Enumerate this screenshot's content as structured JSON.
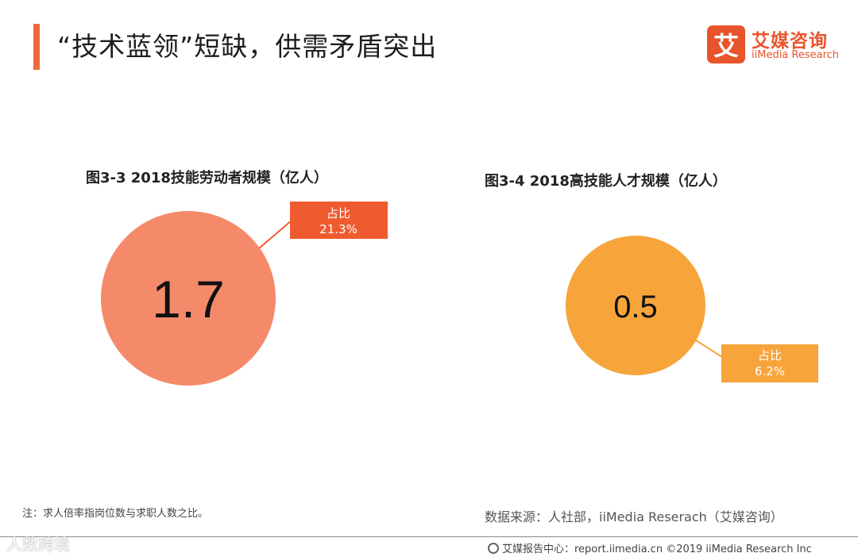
{
  "header": {
    "title": "“技术蓝领”短缺，供需矛盾突出"
  },
  "logo": {
    "mark": "艾",
    "cn": "艾媒咨询",
    "en": "iiMedia Research"
  },
  "chart_data": [
    {
      "type": "bubble",
      "title": "图3-3 2018技能劳动者规模（亿人）",
      "value_label": "1.7",
      "value": 1.7,
      "callout_label": "占比",
      "callout_value": "21.3%",
      "share": 21.3,
      "color": "#f58a6b",
      "callout_color": "#ef5b2f"
    },
    {
      "type": "bubble",
      "title": "图3-4 2018高技能人才规模（亿人）",
      "value_label": "0.5",
      "value": 0.5,
      "callout_label": "占比",
      "callout_value": "6.2%",
      "share": 6.2,
      "color": "#f7a43a",
      "callout_color": "#f7a43a"
    }
  ],
  "note": "注：求人倍率指岗位数与求职人数之比。",
  "source": "数据来源：人社部，iiMedia Reserach（艾媒咨询）",
  "footer": {
    "text": "艾媒报告中心：report.iimedia.cn  ©2019  iiMedia Research  Inc"
  },
  "watermark": "人数跨境"
}
